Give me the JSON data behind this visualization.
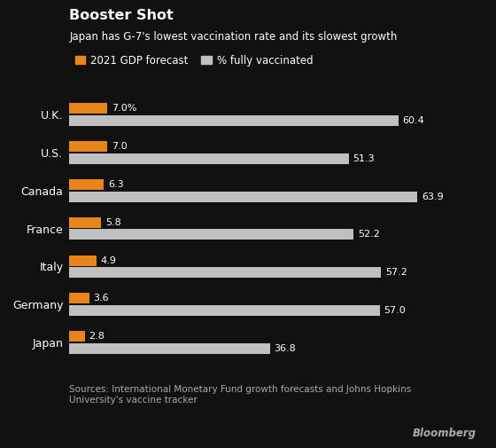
{
  "title": "Booster Shot",
  "subtitle": "Japan has G-7's lowest vaccination rate and its slowest growth",
  "countries": [
    "U.K.",
    "U.S.",
    "Canada",
    "France",
    "Italy",
    "Germany",
    "Japan"
  ],
  "gdp_values": [
    7.0,
    7.0,
    6.3,
    5.8,
    4.9,
    3.6,
    2.8
  ],
  "gdp_labels": [
    "7.0%",
    "7.0",
    "6.3",
    "5.8",
    "4.9",
    "3.6",
    "2.8"
  ],
  "vax_values": [
    60.4,
    51.3,
    63.9,
    52.2,
    57.2,
    57.0,
    36.8
  ],
  "vax_labels": [
    "60.4",
    "51.3",
    "63.9",
    "52.2",
    "57.2",
    "57.0",
    "36.8"
  ],
  "gdp_color": "#E8841A",
  "vax_color": "#C0C0C0",
  "background_color": "#111111",
  "text_color": "#FFFFFF",
  "label_color": "#AAAAAA",
  "source_text": "Sources: International Monetary Fund growth forecasts and Johns Hopkins\nUniversity's vaccine tracker",
  "bloomberg_text": "Bloomberg",
  "legend_gdp": "2021 GDP forecast",
  "legend_vax": "% fully vaccinated",
  "bar_height": 0.28,
  "bar_gap": 0.04,
  "xlim_max": 72
}
